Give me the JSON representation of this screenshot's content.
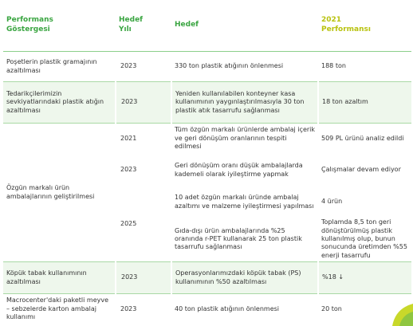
{
  "table": {
    "headers": [
      "Performans Göstergesi",
      "Hedef Yılı",
      "Hedef",
      "2021 Performansı"
    ],
    "rows": [
      {
        "indicator": "Poşetlerin plastik gramajının azaltılması",
        "year": "2023",
        "target": "330 ton plastik atığının önlenmesi",
        "result": "188 ton"
      },
      {
        "indicator": "Tedarikçilerimizin sevkiyatlarındaki plastik atığın azaltılması",
        "year": "2023",
        "target": "Yeniden kullanılabilen konteyner kasa kullanımının yaygınlaştırılmasıyla 30 ton plastik atık tasarrufu sağlanması",
        "result": "18 ton azaltım"
      },
      {
        "indicator": "Özgün markalı ürün ambalajlarının geliştirilmesi",
        "entries": [
          {
            "year": "2021",
            "goals": [
              {
                "target": "Tüm özgün markalı ürünlerde ambalaj içerik ve geri dönüşüm oranlarının tespiti edilmesi",
                "result": "509 PL ürünü analiz edildi"
              }
            ]
          },
          {
            "year": "2023",
            "goals": [
              {
                "target": "Geri dönüşüm oranı düşük ambalajlarda kademeli olarak iyileştirme yapmak",
                "result": "Çalışmalar devam ediyor"
              }
            ]
          },
          {
            "year": "2025",
            "goals": [
              {
                "target": "10 adet özgün markalı üründe ambalaj azaltımı ve malzeme iyileştirmesi yapılması",
                "result": "4 ürün"
              },
              {
                "target": "Gıda-dışı ürün ambalajlarında %25 oranında r-PET kullanarak 25 ton plastik tasarrufu sağlanması",
                "result": "Toplamda 8,5 ton geri dönüştürülmüş plastik kullanılmış olup, bunun sonucunda üretimden %55 enerji tasarrufu"
              }
            ]
          }
        ]
      },
      {
        "indicator": "Köpük tabak kullanımının azaltılması",
        "year": "2023",
        "target": "Operasyonlarımızdaki köpük tabak (PS) kullanımının %50 azaltılması",
        "result": "%18 ↓"
      },
      {
        "indicator": "Macrocenter'daki paketli meyve – sebzelerde karton ambalaj kullanımı",
        "year": "2023",
        "target": "40 ton plastik atığının önlenmesi",
        "result": "20 ton"
      }
    ]
  }
}
